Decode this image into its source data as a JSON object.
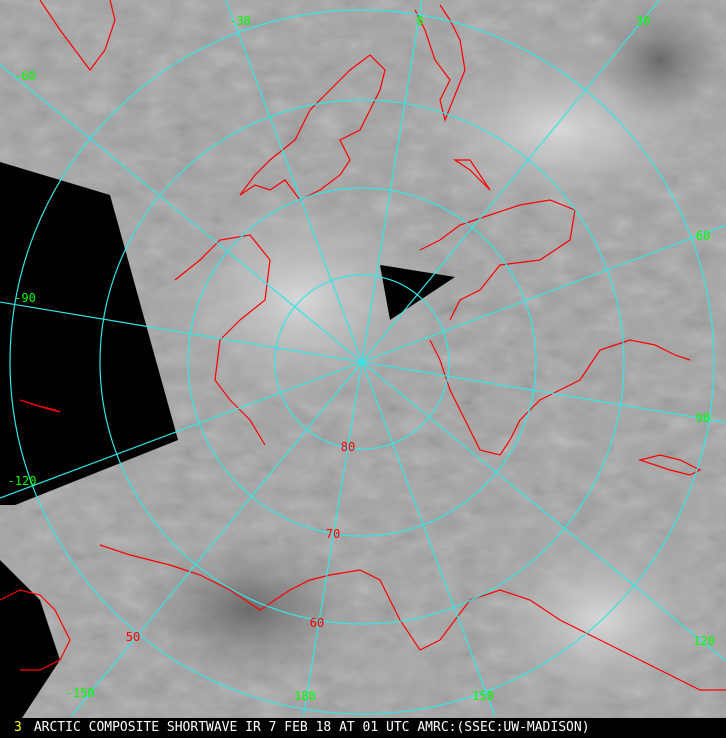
{
  "image": {
    "frame_number": "3",
    "caption": "ARCTIC COMPOSITE SHORTWAVE IR 7 FEB 18 AT 01 UTC AMRC:(SSEC:UW-MADISON)"
  },
  "map": {
    "projection": "polar stereographic (north pole)",
    "colors": {
      "graticule": "#33e6e6",
      "coastline": "#ff0000",
      "longitude_labels": "#00ff00",
      "latitude_labels": "#ff0000",
      "no_data": "#000000",
      "footer_frame_number": "#ffff00",
      "footer_text": "#ffffff"
    },
    "longitude_labels": [
      "0",
      "30",
      "60",
      "90",
      "120",
      "150",
      "180",
      "-150",
      "-120",
      "-90",
      "-60",
      "-30"
    ],
    "latitude_labels": [
      "80",
      "70",
      "60",
      "50"
    ]
  }
}
